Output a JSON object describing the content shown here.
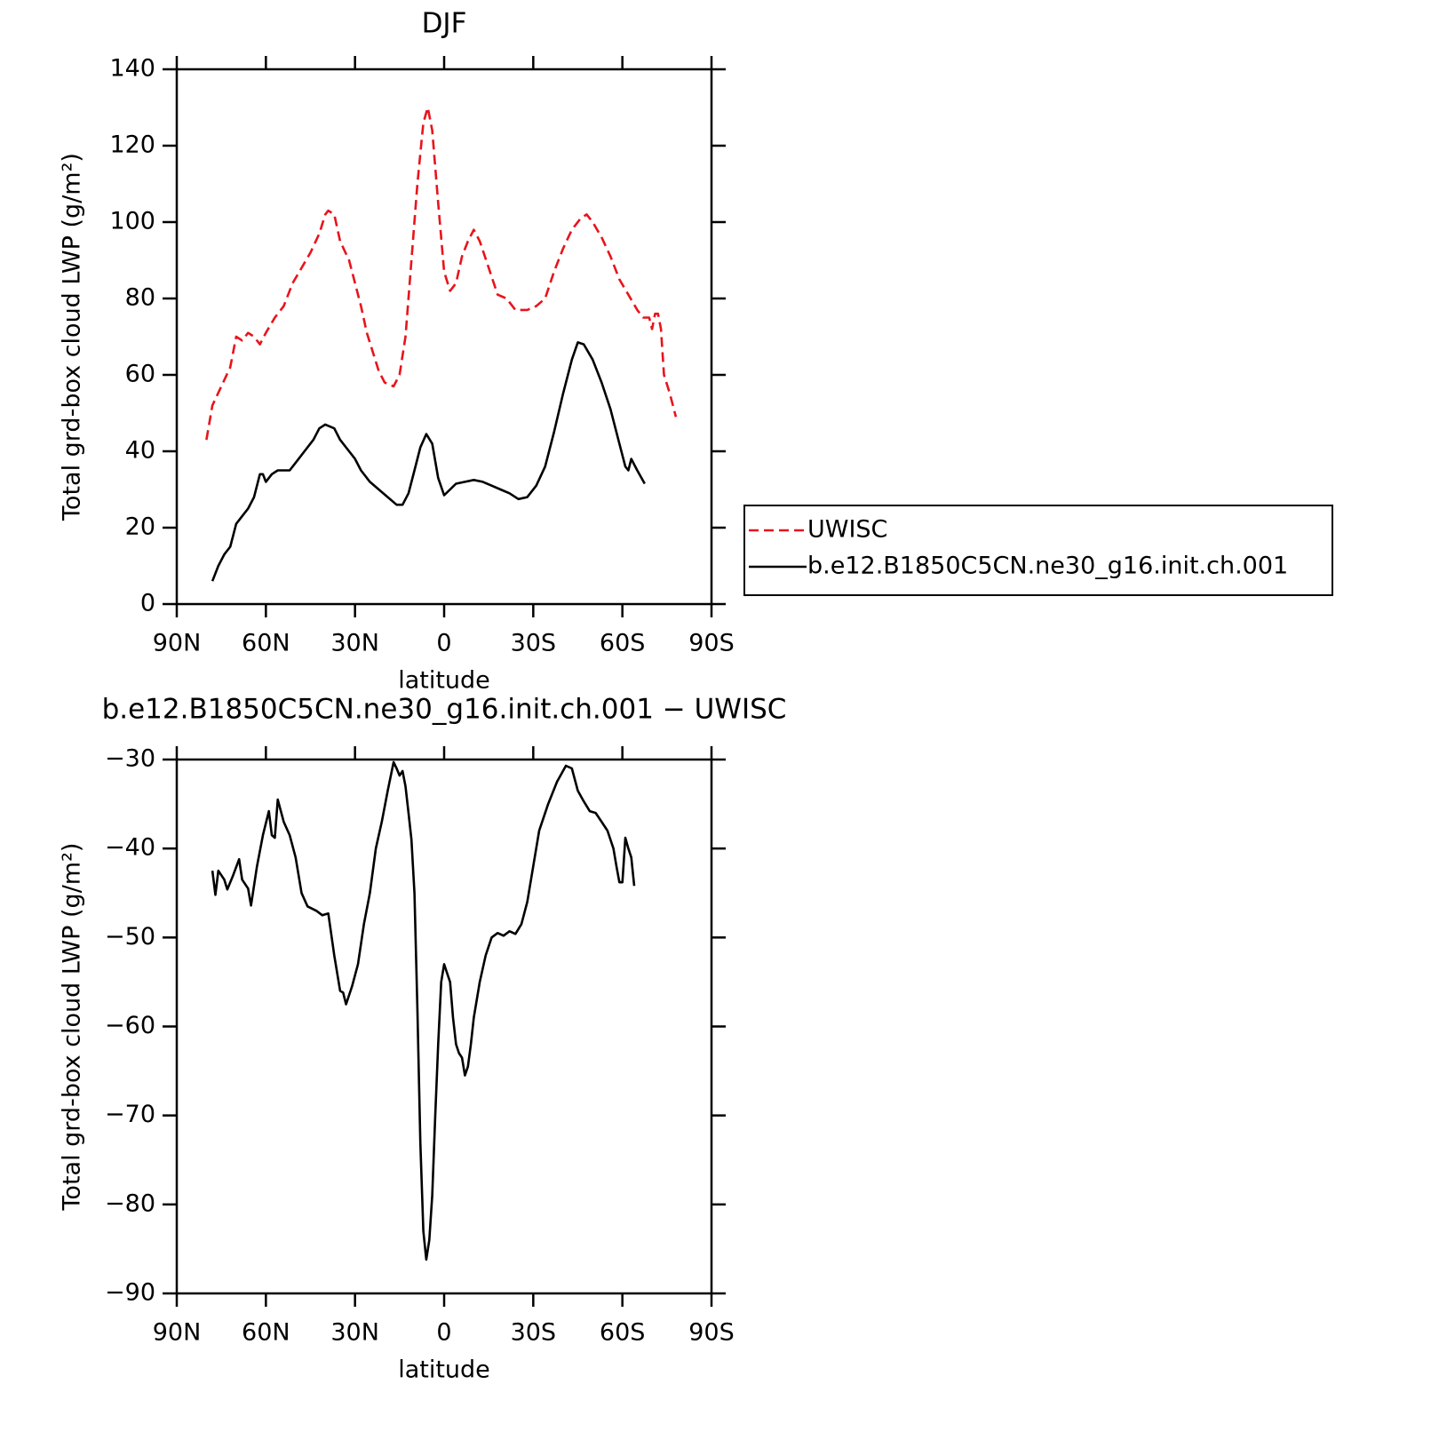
{
  "chart_data": [
    {
      "type": "line",
      "title": "DJF",
      "xlabel": "latitude",
      "ylabel": "Total grd-box cloud LWP (g/m²)",
      "xlim": [
        90,
        -90
      ],
      "xticks": [
        {
          "value": 90,
          "label": "90N"
        },
        {
          "value": 60,
          "label": "60N"
        },
        {
          "value": 30,
          "label": "30N"
        },
        0,
        {
          "value": -30,
          "label": "30S"
        },
        {
          "value": -60,
          "label": "60S"
        },
        {
          "value": -90,
          "label": "90S"
        }
      ],
      "ylim": [
        0,
        140
      ],
      "yticks": [
        0,
        20,
        40,
        60,
        80,
        100,
        120,
        140
      ],
      "legend": "right",
      "series": [
        {
          "name": "UWISC",
          "color": "#e8141c",
          "dashed": true,
          "x": [
            80,
            78,
            75,
            72,
            70,
            68,
            66,
            64,
            62,
            60,
            57,
            54,
            51,
            48,
            45,
            42,
            40,
            39,
            37,
            35,
            32,
            30,
            28,
            26,
            24,
            22,
            20,
            17,
            15,
            13,
            11,
            9,
            7,
            5.5,
            4,
            2,
            0,
            -2,
            -4,
            -6,
            -8,
            -10,
            -12,
            -15,
            -18,
            -21,
            -24,
            -28,
            -31,
            -34,
            -37,
            -40,
            -43,
            -46,
            -48,
            -50,
            -53,
            -56,
            -59,
            -62,
            -65,
            -67,
            -69,
            -70,
            -71,
            -72,
            -73,
            -74,
            -76,
            -78
          ],
          "values": [
            43,
            52,
            57,
            62,
            70,
            69,
            71,
            70,
            68,
            71,
            75,
            78,
            84,
            88,
            92,
            97,
            102,
            103,
            102,
            95,
            90,
            84,
            78,
            71,
            66,
            61,
            58,
            57,
            60,
            70,
            90,
            110,
            126,
            130,
            124,
            105,
            87,
            82,
            84,
            91,
            95,
            98,
            95,
            88,
            81,
            80,
            77,
            77,
            78,
            80,
            87,
            93,
            98,
            101,
            102,
            100,
            96,
            91,
            85,
            81,
            77,
            75,
            75,
            72,
            76,
            76,
            72,
            60,
            55,
            49
          ]
        },
        {
          "name": "b.e12.B1850C5CN.ne30_g16.init.ch.001",
          "color": "#000000",
          "dashed": false,
          "x": [
            78,
            76,
            74,
            72,
            70,
            68,
            66,
            64,
            62,
            61,
            60,
            58,
            56,
            54,
            52,
            50,
            47,
            44,
            42,
            40,
            37,
            35,
            32,
            30,
            28,
            25,
            22,
            19,
            16,
            14,
            12,
            10,
            8,
            6,
            4,
            2,
            0,
            -2,
            -4,
            -7,
            -10,
            -13,
            -16,
            -19,
            -22,
            -25,
            -28,
            -31,
            -34,
            -37,
            -40,
            -43,
            -45,
            -47,
            -50,
            -53,
            -56,
            -59,
            -61,
            -62,
            -63,
            -65,
            -67.5
          ],
          "values": [
            6,
            10,
            13,
            15,
            21,
            23,
            25,
            28,
            34,
            34,
            32,
            34,
            35,
            35,
            35,
            37,
            40,
            43,
            46,
            47,
            46,
            43,
            40,
            38,
            35,
            32,
            30,
            28,
            26,
            26,
            29,
            35,
            41,
            44.5,
            42,
            33,
            28.5,
            30,
            31.5,
            32,
            32.5,
            32,
            31,
            30,
            29,
            27.5,
            28,
            31,
            36,
            45,
            55,
            64,
            68.5,
            68,
            64,
            58,
            51,
            42,
            36,
            35,
            38,
            35,
            31.5
          ]
        }
      ]
    },
    {
      "type": "line",
      "title": "b.e12.B1850C5CN.ne30_g16.init.ch.001 − UWISC",
      "xlabel": "latitude",
      "ylabel": "Total grd-box cloud LWP (g/m²)",
      "xlim": [
        90,
        -90
      ],
      "xticks": [
        {
          "value": 90,
          "label": "90N"
        },
        {
          "value": 60,
          "label": "60N"
        },
        {
          "value": 30,
          "label": "30N"
        },
        0,
        {
          "value": -30,
          "label": "30S"
        },
        {
          "value": -60,
          "label": "60S"
        },
        {
          "value": -90,
          "label": "90S"
        }
      ],
      "ylim": [
        -90,
        -30
      ],
      "yticks": [
        {
          "value": -90,
          "label": "−90"
        },
        {
          "value": -80,
          "label": "−80"
        },
        {
          "value": -70,
          "label": "−70"
        },
        {
          "value": -60,
          "label": "−60"
        },
        {
          "value": -50,
          "label": "−50"
        },
        {
          "value": -40,
          "label": "−40"
        },
        {
          "value": -30,
          "label": "−30"
        }
      ],
      "series": [
        {
          "color": "#000000",
          "dashed": false,
          "x": [
            78,
            77,
            76,
            74,
            73,
            71,
            69,
            68,
            66,
            65,
            63,
            61,
            59,
            58,
            57,
            56,
            54,
            52,
            50,
            48,
            46,
            43,
            41,
            39,
            37,
            35,
            34,
            33,
            31,
            29,
            27,
            25,
            23,
            21,
            19,
            17,
            16,
            15,
            14,
            13,
            12,
            11,
            10,
            9,
            8,
            7,
            6,
            5,
            4,
            3,
            2,
            1,
            0,
            -1,
            -2,
            -3,
            -4,
            -5,
            -6,
            -7,
            -8,
            -9,
            -10,
            -12,
            -14,
            -16,
            -18,
            -20,
            -22,
            -24,
            -26,
            -28,
            -30,
            -32,
            -35,
            -38,
            -41,
            -43,
            -45,
            -47,
            -49,
            -51,
            -53,
            -55,
            -57,
            -58,
            -59,
            -60,
            -61,
            -62,
            -63,
            -64
          ],
          "values": [
            -42.5,
            -45.2,
            -42.5,
            -43.5,
            -44.6,
            -43,
            -41.2,
            -43.5,
            -44.5,
            -46.4,
            -42,
            -38.5,
            -35.8,
            -38.5,
            -38.8,
            -34.5,
            -37,
            -38.5,
            -41,
            -45,
            -46.5,
            -47,
            -47.5,
            -47.3,
            -52,
            -56,
            -56.2,
            -57.5,
            -55.5,
            -53,
            -48.5,
            -45,
            -40,
            -37,
            -33.5,
            -30.3,
            -31,
            -31.8,
            -31.3,
            -33,
            -36,
            -39,
            -45,
            -58,
            -73,
            -83,
            -86.2,
            -84,
            -79,
            -70,
            -62,
            -55,
            -53,
            -54,
            -55,
            -59,
            -62,
            -63,
            -63.5,
            -65.5,
            -64.5,
            -62,
            -59,
            -55,
            -52,
            -50,
            -49.5,
            -49.8,
            -49.3,
            -49.6,
            -48.5,
            -46,
            -42,
            -38,
            -35,
            -32.5,
            -30.7,
            -31,
            -33.5,
            -34.7,
            -35.8,
            -36,
            -37,
            -38,
            -40,
            -42,
            -43.8,
            -43.8,
            -38.8,
            -40,
            -41,
            -44.2
          ]
        }
      ]
    }
  ]
}
